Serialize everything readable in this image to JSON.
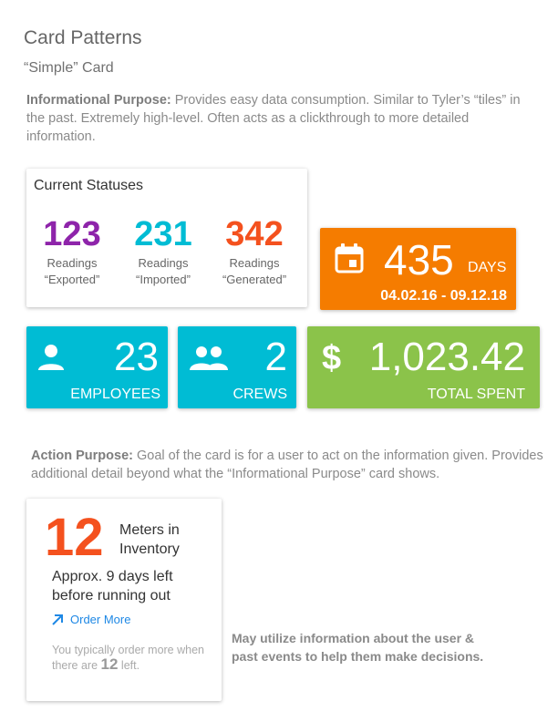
{
  "page": {
    "title": "Card Patterns",
    "subtitle": "“Simple” Card"
  },
  "info_section": {
    "label": "Informational Purpose:",
    "text": " Provides easy data consumption. Similar to Tyler’s “tiles” in the past. Extremely high-level. Often acts as a clickthrough to more detailed information."
  },
  "status_card": {
    "heading": "Current Statuses",
    "stats": [
      {
        "value": "123",
        "line1": "Readings",
        "line2": "“Exported”",
        "color": "#8e24aa"
      },
      {
        "value": "231",
        "line1": "Readings",
        "line2": "“Imported”",
        "color": "#00bcd4"
      },
      {
        "value": "342",
        "line1": "Readings",
        "line2": "“Generated”",
        "color": "#f4511e"
      }
    ]
  },
  "days_tile": {
    "icon": "calendar-icon",
    "value": "435",
    "unit": "DAYS",
    "range": "04.02.16 - 09.12.18",
    "color": "#f57c00"
  },
  "employees_tile": {
    "icon": "person-icon",
    "value": "23",
    "label": "EMPLOYEES",
    "color": "#00bcd4"
  },
  "crews_tile": {
    "icon": "group-icon",
    "value": "2",
    "label": "CREWS",
    "color": "#00bcd4"
  },
  "spent_tile": {
    "icon": "dollar-icon",
    "symbol": "$",
    "value": "1,023.42",
    "label": "TOTAL SPENT",
    "color": "#8bc34a"
  },
  "action_section": {
    "label": "Action Purpose:",
    "text": " Goal of the card is for a user to act on the information given. Provides additional detail beyond what the “Informational Purpose” card shows."
  },
  "action_card": {
    "count": "12",
    "title_line1": "Meters in",
    "title_line2": "Inventory",
    "detail_line1": "Approx. 9 days left",
    "detail_line2": "before running out",
    "link_icon": "arrow-up-right-icon",
    "link_label": "Order More",
    "hint_before": "You typically order more when there are ",
    "hint_value": "12",
    "hint_after": " left."
  },
  "side_note": {
    "line1": "May utilize information about the user &",
    "line2": "past events to help them make decisions."
  }
}
